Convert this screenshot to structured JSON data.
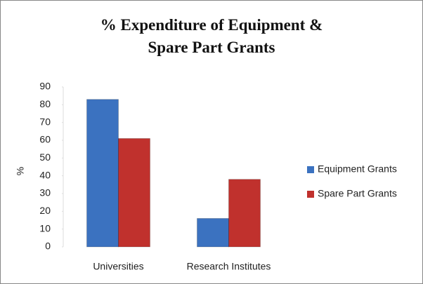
{
  "chart_data": {
    "type": "bar",
    "title": "% Expenditure of Equipment & Spare Part Grants",
    "y_label": "%",
    "categories": [
      "Universities",
      "Research Institutes"
    ],
    "series": [
      {
        "name": "Equipment Grants",
        "color": "#3b72c0",
        "values": [
          83,
          16
        ]
      },
      {
        "name": "Spare Part Grants",
        "color": "#c0312d",
        "values": [
          61,
          38
        ]
      }
    ],
    "ylim": [
      0,
      90
    ],
    "yticks": [
      0,
      10,
      20,
      30,
      40,
      50,
      60,
      70,
      80,
      90
    ],
    "grid": false,
    "legend": "right"
  }
}
